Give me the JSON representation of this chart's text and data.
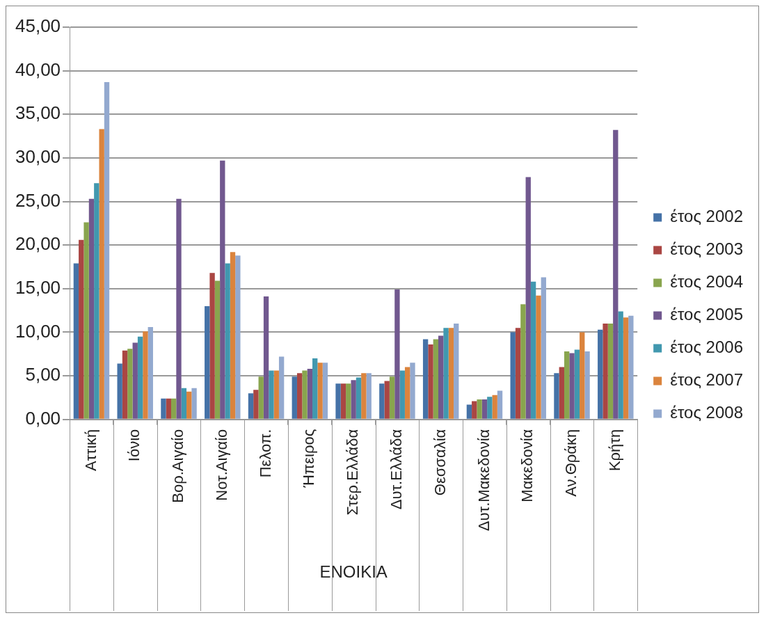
{
  "chart_data": {
    "type": "bar",
    "xlabel": "ΕΝΟΙΚΙΑ",
    "categories": [
      "Αττική",
      "Ιόνιο",
      "Βορ.Αιγαίο",
      "Νοτ.Αιγαίο",
      "Πελοπ.",
      "Ήπειρος",
      "Στερ.Ελλάδα",
      "Δυτ.Ελλάδα",
      "Θεσσαλία",
      "Δυτ.Μακεδονία",
      "Μακεδονία",
      "Αν.Θράκη",
      "Κρήτη"
    ],
    "series": [
      {
        "name": "έτος 2002",
        "color": "#4572a7",
        "values": [
          17.9,
          6.4,
          2.4,
          13.0,
          3.0,
          4.9,
          4.1,
          4.1,
          9.2,
          1.7,
          10.0,
          5.3,
          10.3
        ]
      },
      {
        "name": "έτος 2003",
        "color": "#aa4643",
        "values": [
          20.6,
          7.9,
          2.4,
          16.8,
          3.4,
          5.3,
          4.1,
          4.4,
          8.6,
          2.1,
          10.5,
          6.0,
          11.0
        ]
      },
      {
        "name": "έτος 2004",
        "color": "#89a54e",
        "values": [
          22.6,
          8.1,
          2.4,
          15.9,
          4.9,
          5.6,
          4.1,
          4.9,
          9.2,
          2.3,
          13.2,
          7.8,
          11.0
        ]
      },
      {
        "name": "έτος 2005",
        "color": "#71588f",
        "values": [
          25.3,
          8.8,
          25.3,
          29.7,
          14.1,
          5.8,
          4.5,
          14.9,
          9.6,
          2.3,
          27.8,
          7.6,
          33.2
        ]
      },
      {
        "name": "έτος 2006",
        "color": "#4198af",
        "values": [
          27.1,
          9.5,
          3.6,
          17.9,
          5.6,
          7.0,
          4.8,
          5.6,
          10.5,
          2.6,
          15.8,
          8.0,
          12.4
        ]
      },
      {
        "name": "έτος 2007",
        "color": "#db843d",
        "values": [
          33.3,
          10.1,
          3.2,
          19.2,
          5.6,
          6.5,
          5.3,
          6.0,
          10.5,
          2.8,
          14.2,
          10.0,
          11.7
        ]
      },
      {
        "name": "έτος 2008",
        "color": "#93a9cf",
        "values": [
          38.7,
          10.6,
          3.6,
          18.8,
          7.2,
          6.5,
          5.3,
          6.5,
          11.0,
          3.3,
          16.3,
          7.8,
          11.9
        ]
      }
    ],
    "ylim": [
      0,
      45
    ],
    "yticks": [
      {
        "value": 0,
        "label": "0,00"
      },
      {
        "value": 5,
        "label": "5,00"
      },
      {
        "value": 10,
        "label": "10,00"
      },
      {
        "value": 15,
        "label": "15,00"
      },
      {
        "value": 20,
        "label": "20,00"
      },
      {
        "value": 25,
        "label": "25,00"
      },
      {
        "value": 30,
        "label": "30,00"
      },
      {
        "value": 35,
        "label": "35,00"
      },
      {
        "value": 40,
        "label": "40,00"
      },
      {
        "value": 45,
        "label": "45,00"
      }
    ],
    "grid": "y",
    "legend": "right"
  }
}
